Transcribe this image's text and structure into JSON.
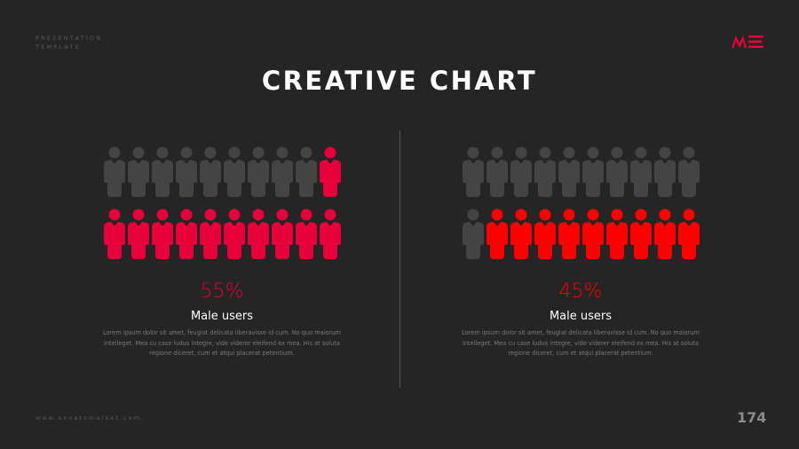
{
  "header": {
    "brand_line1": "PRESENTATION",
    "brand_line2": "TEMPLATE",
    "logo_text": "ME",
    "logo_color": "#e8003a"
  },
  "title": "CREATIVE CHART",
  "panels": [
    {
      "percent": "55%",
      "value": 55,
      "label": "Male users",
      "highlight_color": "#e8003a",
      "inactive_color": "#444444",
      "total_icons": 20,
      "highlighted_icons": 11,
      "description": "Lorem ipsum dolor sit amet, feugiat delicata liberavisse id cum. No quo maiorum intelleget. Mea cu case ludus integre, vide viderer eleifend ex mea. His at soluta regione diceret, cum et atqui placerat petentium."
    },
    {
      "percent": "45%",
      "value": 45,
      "label": "Male users",
      "highlight_color": "#ff0000",
      "inactive_color": "#444444",
      "total_icons": 20,
      "highlighted_icons": 9,
      "description": "Lorem ipsum dolor sit amet, feugiat delicata liberavisse id cum. No quo maiorum intelleget. Mea cu case ludus integre, vide viderer eleifend ex mea. His at soluta regione diceret, cum et atqui placerat petentium."
    }
  ],
  "footer": {
    "website": "www.envatomarket.com",
    "page_number": "174"
  }
}
